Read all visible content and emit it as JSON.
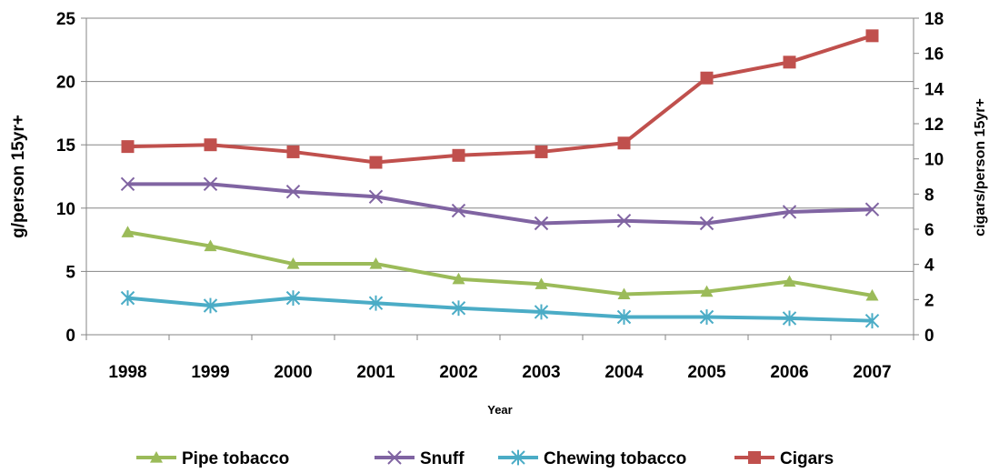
{
  "chart_data": {
    "type": "line",
    "xlabel": "Year",
    "ylabel_left": "g/person 15yr+",
    "ylabel_right": "cigars/person 15yr+",
    "ylim_left": [
      0,
      25
    ],
    "ylim_right": [
      0,
      18
    ],
    "yticks_left": [
      0,
      5,
      10,
      15,
      20,
      25
    ],
    "yticks_right": [
      0,
      2,
      4,
      6,
      8,
      10,
      12,
      14,
      16,
      18
    ],
    "categories": [
      "1998",
      "1999",
      "2000",
      "2001",
      "2002",
      "2003",
      "2004",
      "2005",
      "2006",
      "2007"
    ],
    "grid": true,
    "legend_position": "bottom",
    "series": [
      {
        "name": "Pipe tobacco",
        "axis": "left",
        "color": "#9bbb59",
        "marker": "triangle",
        "values": [
          8.1,
          7.0,
          5.6,
          5.6,
          4.4,
          4.0,
          3.2,
          3.4,
          4.2,
          3.1
        ]
      },
      {
        "name": "Snuff",
        "axis": "left",
        "color": "#8064a2",
        "marker": "x",
        "values": [
          11.9,
          11.9,
          11.3,
          10.9,
          9.8,
          8.8,
          9.0,
          8.8,
          9.7,
          9.9
        ]
      },
      {
        "name": "Chewing tobacco",
        "axis": "left",
        "color": "#4bacc6",
        "marker": "star",
        "values": [
          2.9,
          2.3,
          2.9,
          2.5,
          2.1,
          1.8,
          1.4,
          1.4,
          1.3,
          1.1
        ]
      },
      {
        "name": "Cigars",
        "axis": "right",
        "color": "#c0504d",
        "marker": "square",
        "values": [
          10.7,
          10.8,
          10.4,
          9.8,
          10.2,
          10.4,
          10.9,
          14.6,
          15.5,
          17.0
        ]
      }
    ]
  }
}
